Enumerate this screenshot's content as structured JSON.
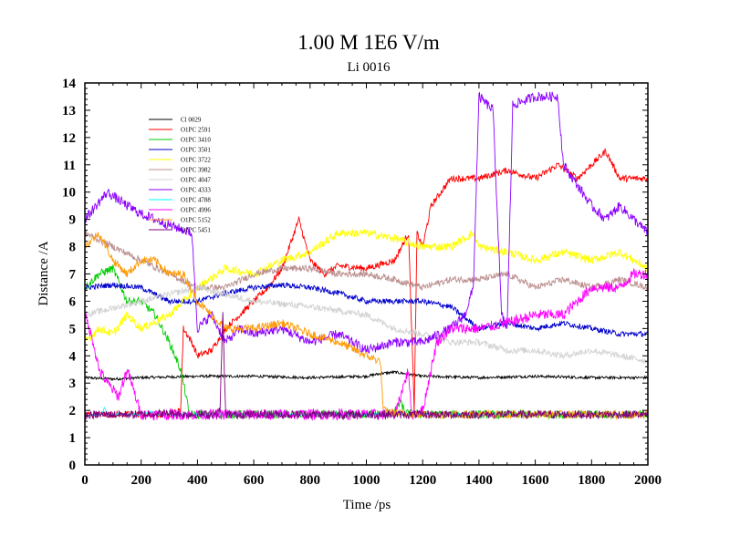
{
  "chart_data": {
    "type": "line",
    "title": "1.00 M 1E6 V/m",
    "subtitle": "Li 0016",
    "xlabel": "Time /ps",
    "ylabel": "Distance /A",
    "xlim": [
      0,
      2000
    ],
    "ylim": [
      0,
      14
    ],
    "xticks": [
      0,
      200,
      400,
      600,
      800,
      1000,
      1200,
      1400,
      1600,
      1800,
      2000
    ],
    "yticks": [
      0,
      1,
      2,
      3,
      4,
      5,
      6,
      7,
      8,
      9,
      10,
      11,
      12,
      13,
      14
    ],
    "legend_position": "top-left",
    "series": [
      {
        "name": "Cl 0029",
        "color": "#000000",
        "noise": 0.05,
        "points": [
          [
            0,
            3.2
          ],
          [
            100,
            3.15
          ],
          [
            200,
            3.2
          ],
          [
            400,
            3.25
          ],
          [
            600,
            3.25
          ],
          [
            800,
            3.2
          ],
          [
            1000,
            3.25
          ],
          [
            1050,
            3.35
          ],
          [
            1100,
            3.4
          ],
          [
            1200,
            3.25
          ],
          [
            1400,
            3.2
          ],
          [
            1600,
            3.25
          ],
          [
            1800,
            3.2
          ],
          [
            2000,
            3.2
          ]
        ]
      },
      {
        "name": "O1PC 2591",
        "color": "#ff0000",
        "noise": 0.12,
        "points": [
          [
            0,
            1.85
          ],
          [
            300,
            1.85
          ],
          [
            340,
            2.0
          ],
          [
            350,
            5.0
          ],
          [
            380,
            4.5
          ],
          [
            400,
            4.0
          ],
          [
            450,
            4.2
          ],
          [
            500,
            5.0
          ],
          [
            550,
            5.5
          ],
          [
            600,
            6.0
          ],
          [
            650,
            6.5
          ],
          [
            700,
            7.2
          ],
          [
            760,
            9.0
          ],
          [
            800,
            7.5
          ],
          [
            850,
            7.0
          ],
          [
            900,
            7.3
          ],
          [
            1000,
            7.2
          ],
          [
            1100,
            7.5
          ],
          [
            1150,
            8.5
          ],
          [
            1170,
            2.0
          ],
          [
            1180,
            8.5
          ],
          [
            1200,
            8.0
          ],
          [
            1230,
            9.5
          ],
          [
            1300,
            10.5
          ],
          [
            1400,
            10.5
          ],
          [
            1500,
            10.8
          ],
          [
            1600,
            10.5
          ],
          [
            1680,
            11.0
          ],
          [
            1750,
            10.5
          ],
          [
            1850,
            11.5
          ],
          [
            1900,
            10.5
          ],
          [
            2000,
            10.5
          ]
        ]
      },
      {
        "name": "O1PC 3410",
        "color": "#00cc00",
        "noise": 0.15,
        "points": [
          [
            0,
            6.5
          ],
          [
            50,
            7.0
          ],
          [
            100,
            7.2
          ],
          [
            150,
            6.0
          ],
          [
            200,
            6.0
          ],
          [
            250,
            5.5
          ],
          [
            300,
            4.5
          ],
          [
            340,
            3.5
          ],
          [
            360,
            2.5
          ],
          [
            370,
            1.85
          ],
          [
            500,
            1.85
          ],
          [
            800,
            1.85
          ],
          [
            1000,
            1.85
          ],
          [
            1100,
            1.9
          ],
          [
            1120,
            2.3
          ],
          [
            1140,
            1.9
          ],
          [
            1200,
            1.85
          ],
          [
            2000,
            1.85
          ]
        ]
      },
      {
        "name": "O1PC 3501",
        "color": "#0000cc",
        "noise": 0.1,
        "points": [
          [
            0,
            6.5
          ],
          [
            100,
            6.6
          ],
          [
            200,
            6.5
          ],
          [
            300,
            6.0
          ],
          [
            400,
            6.0
          ],
          [
            500,
            6.3
          ],
          [
            600,
            6.5
          ],
          [
            700,
            6.6
          ],
          [
            800,
            6.5
          ],
          [
            900,
            6.3
          ],
          [
            1000,
            6.0
          ],
          [
            1100,
            6.0
          ],
          [
            1200,
            6.0
          ],
          [
            1300,
            5.8
          ],
          [
            1400,
            5.0
          ],
          [
            1500,
            5.2
          ],
          [
            1600,
            5.0
          ],
          [
            1700,
            5.2
          ],
          [
            1800,
            5.0
          ],
          [
            1900,
            4.8
          ],
          [
            2000,
            4.8
          ]
        ]
      },
      {
        "name": "O1PC 3722",
        "color": "#ffff00",
        "noise": 0.15,
        "points": [
          [
            0,
            4.5
          ],
          [
            50,
            5.0
          ],
          [
            100,
            4.8
          ],
          [
            150,
            5.5
          ],
          [
            200,
            5.0
          ],
          [
            300,
            5.5
          ],
          [
            400,
            6.5
          ],
          [
            500,
            7.2
          ],
          [
            600,
            7.0
          ],
          [
            700,
            7.5
          ],
          [
            800,
            7.8
          ],
          [
            900,
            8.5
          ],
          [
            1000,
            8.5
          ],
          [
            1100,
            8.3
          ],
          [
            1200,
            8.0
          ],
          [
            1300,
            8.0
          ],
          [
            1380,
            8.5
          ],
          [
            1400,
            8.0
          ],
          [
            1500,
            7.8
          ],
          [
            1600,
            7.5
          ],
          [
            1700,
            7.8
          ],
          [
            1800,
            7.5
          ],
          [
            1900,
            7.8
          ],
          [
            2000,
            7.2
          ]
        ]
      },
      {
        "name": "O1PC 3982",
        "color": "#bc8f8f",
        "noise": 0.12,
        "points": [
          [
            0,
            8.5
          ],
          [
            100,
            8.0
          ],
          [
            200,
            7.5
          ],
          [
            300,
            7.0
          ],
          [
            400,
            6.5
          ],
          [
            500,
            6.5
          ],
          [
            600,
            7.0
          ],
          [
            700,
            7.2
          ],
          [
            800,
            7.2
          ],
          [
            900,
            7.0
          ],
          [
            1000,
            7.0
          ],
          [
            1100,
            6.8
          ],
          [
            1200,
            6.5
          ],
          [
            1300,
            6.8
          ],
          [
            1400,
            6.8
          ],
          [
            1500,
            7.0
          ],
          [
            1600,
            6.5
          ],
          [
            1700,
            6.8
          ],
          [
            1800,
            6.5
          ],
          [
            1900,
            6.8
          ],
          [
            2000,
            6.5
          ]
        ]
      },
      {
        "name": "O1PC 4047",
        "color": "#d3d3d3",
        "noise": 0.12,
        "points": [
          [
            0,
            5.5
          ],
          [
            200,
            6.0
          ],
          [
            400,
            6.5
          ],
          [
            600,
            6.0
          ],
          [
            800,
            5.8
          ],
          [
            1000,
            5.5
          ],
          [
            1100,
            5.0
          ],
          [
            1200,
            4.8
          ],
          [
            1300,
            4.5
          ],
          [
            1400,
            4.5
          ],
          [
            1500,
            4.2
          ],
          [
            1600,
            4.2
          ],
          [
            1700,
            4.0
          ],
          [
            1800,
            4.2
          ],
          [
            1900,
            4.0
          ],
          [
            2000,
            3.8
          ]
        ]
      },
      {
        "name": "O1PC 4333",
        "color": "#8b00ff",
        "noise": 0.18,
        "points": [
          [
            0,
            9.0
          ],
          [
            80,
            10.0
          ],
          [
            150,
            9.5
          ],
          [
            200,
            9.2
          ],
          [
            250,
            9.0
          ],
          [
            300,
            8.8
          ],
          [
            380,
            8.5
          ],
          [
            400,
            5.0
          ],
          [
            450,
            5.5
          ],
          [
            500,
            4.5
          ],
          [
            550,
            5.0
          ],
          [
            600,
            4.8
          ],
          [
            700,
            5.0
          ],
          [
            800,
            4.5
          ],
          [
            900,
            4.8
          ],
          [
            1000,
            4.2
          ],
          [
            1100,
            4.5
          ],
          [
            1200,
            4.5
          ],
          [
            1300,
            5.0
          ],
          [
            1350,
            5.5
          ],
          [
            1380,
            6.5
          ],
          [
            1400,
            13.5
          ],
          [
            1450,
            13.0
          ],
          [
            1480,
            5.5
          ],
          [
            1500,
            5.0
          ],
          [
            1520,
            13.2
          ],
          [
            1600,
            13.5
          ],
          [
            1680,
            13.5
          ],
          [
            1700,
            11.0
          ],
          [
            1800,
            9.5
          ],
          [
            1850,
            9.0
          ],
          [
            1900,
            9.5
          ],
          [
            1950,
            9.0
          ],
          [
            2000,
            8.5
          ]
        ]
      },
      {
        "name": "O1PC 4788",
        "color": "#00ffff",
        "noise": 0.04,
        "points": [
          [
            0,
            1.8
          ],
          [
            60,
            1.85
          ],
          [
            70,
            2.1
          ],
          [
            80,
            1.85
          ],
          [
            200,
            1.85
          ],
          [
            240,
            1.95
          ],
          [
            260,
            1.85
          ],
          [
            500,
            1.85
          ],
          [
            800,
            1.85
          ],
          [
            1000,
            1.85
          ],
          [
            1200,
            1.85
          ],
          [
            1400,
            1.85
          ],
          [
            1600,
            1.85
          ],
          [
            1800,
            1.85
          ],
          [
            2000,
            1.85
          ]
        ]
      },
      {
        "name": "O1PC 4996",
        "color": "#ff00ff",
        "noise": 0.2,
        "points": [
          [
            0,
            5.5
          ],
          [
            30,
            4.5
          ],
          [
            50,
            3.5
          ],
          [
            80,
            3.0
          ],
          [
            120,
            2.5
          ],
          [
            150,
            3.5
          ],
          [
            200,
            1.85
          ],
          [
            300,
            1.85
          ],
          [
            500,
            1.85
          ],
          [
            800,
            1.85
          ],
          [
            1000,
            1.85
          ],
          [
            1100,
            1.85
          ],
          [
            1150,
            3.5
          ],
          [
            1160,
            1.85
          ],
          [
            1200,
            2.0
          ],
          [
            1250,
            4.5
          ],
          [
            1300,
            5.0
          ],
          [
            1400,
            5.0
          ],
          [
            1500,
            5.2
          ],
          [
            1600,
            5.5
          ],
          [
            1700,
            5.5
          ],
          [
            1800,
            6.5
          ],
          [
            1900,
            6.5
          ],
          [
            1950,
            7.0
          ],
          [
            2000,
            7.0
          ]
        ]
      },
      {
        "name": "O1PC 5152",
        "color": "#ff9900",
        "noise": 0.15,
        "points": [
          [
            0,
            8.0
          ],
          [
            50,
            8.5
          ],
          [
            100,
            7.5
          ],
          [
            150,
            7.0
          ],
          [
            200,
            7.5
          ],
          [
            250,
            7.5
          ],
          [
            300,
            7.0
          ],
          [
            350,
            7.0
          ],
          [
            400,
            6.0
          ],
          [
            450,
            5.5
          ],
          [
            500,
            5.0
          ],
          [
            550,
            5.0
          ],
          [
            600,
            5.0
          ],
          [
            700,
            5.2
          ],
          [
            800,
            4.8
          ],
          [
            900,
            4.5
          ],
          [
            1000,
            4.0
          ],
          [
            1050,
            3.8
          ],
          [
            1060,
            2.0
          ],
          [
            1100,
            1.9
          ],
          [
            1200,
            1.85
          ],
          [
            1400,
            1.85
          ],
          [
            1600,
            1.85
          ],
          [
            1800,
            1.85
          ],
          [
            2000,
            1.85
          ]
        ]
      },
      {
        "name": "O1PC 5451",
        "color": "#800080",
        "noise": 0.15,
        "points": [
          [
            0,
            1.8
          ],
          [
            50,
            1.85
          ],
          [
            80,
            1.85
          ],
          [
            120,
            1.85
          ],
          [
            200,
            1.85
          ],
          [
            300,
            1.9
          ],
          [
            360,
            1.85
          ],
          [
            400,
            1.85
          ],
          [
            470,
            1.85
          ],
          [
            480,
            2.0
          ],
          [
            490,
            5.5
          ],
          [
            500,
            1.85
          ],
          [
            600,
            1.85
          ],
          [
            700,
            1.85
          ],
          [
            800,
            1.85
          ],
          [
            1000,
            1.85
          ],
          [
            1100,
            1.85
          ],
          [
            1200,
            1.85
          ],
          [
            1400,
            1.85
          ],
          [
            1600,
            1.85
          ],
          [
            1800,
            1.85
          ],
          [
            2000,
            1.85
          ]
        ]
      }
    ]
  }
}
